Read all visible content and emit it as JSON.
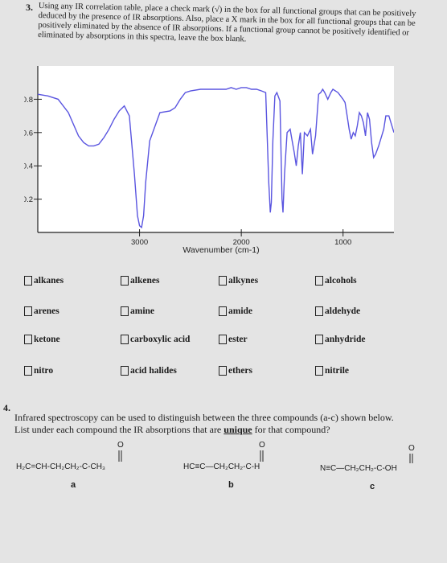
{
  "q3": {
    "number": "3.",
    "text": "Using any IR correlation table, place a check mark (√) in the box for all functional groups that can be positively deduced by the presence of IR absorptions. Also, place a X mark in the box for all functional groups that can be positively eliminated by the absence of IR absorptions. If a functional group cannot be positively identified or eliminated by absorptions in this spectra, leave the box blank."
  },
  "chart_data": {
    "type": "line",
    "title": "",
    "xlabel": "Wavenumber (cm-1)",
    "ylabel": "",
    "x_reversed": true,
    "xlim": [
      4000,
      500
    ],
    "ylim": [
      0,
      1
    ],
    "x_ticks": [
      3000,
      2000,
      1000
    ],
    "y_ticks": [
      0.8,
      0.6,
      0.4,
      0.2
    ],
    "grid": false,
    "series": [
      {
        "color": "#5a55e0",
        "points": [
          [
            4000,
            0.83
          ],
          [
            3900,
            0.82
          ],
          [
            3800,
            0.8
          ],
          [
            3700,
            0.72
          ],
          [
            3600,
            0.58
          ],
          [
            3550,
            0.54
          ],
          [
            3500,
            0.52
          ],
          [
            3450,
            0.52
          ],
          [
            3400,
            0.53
          ],
          [
            3350,
            0.57
          ],
          [
            3300,
            0.62
          ],
          [
            3250,
            0.68
          ],
          [
            3200,
            0.73
          ],
          [
            3150,
            0.76
          ],
          [
            3100,
            0.7
          ],
          [
            3050,
            0.35
          ],
          [
            3020,
            0.1
          ],
          [
            3000,
            0.04
          ],
          [
            2980,
            0.03
          ],
          [
            2960,
            0.1
          ],
          [
            2940,
            0.3
          ],
          [
            2900,
            0.55
          ],
          [
            2800,
            0.72
          ],
          [
            2700,
            0.73
          ],
          [
            2650,
            0.75
          ],
          [
            2600,
            0.8
          ],
          [
            2550,
            0.84
          ],
          [
            2500,
            0.85
          ],
          [
            2400,
            0.86
          ],
          [
            2300,
            0.86
          ],
          [
            2200,
            0.86
          ],
          [
            2150,
            0.86
          ],
          [
            2100,
            0.87
          ],
          [
            2050,
            0.86
          ],
          [
            2000,
            0.87
          ],
          [
            1950,
            0.87
          ],
          [
            1900,
            0.86
          ],
          [
            1850,
            0.86
          ],
          [
            1800,
            0.85
          ],
          [
            1760,
            0.84
          ],
          [
            1730,
            0.3
          ],
          [
            1715,
            0.12
          ],
          [
            1705,
            0.18
          ],
          [
            1690,
            0.55
          ],
          [
            1670,
            0.82
          ],
          [
            1650,
            0.84
          ],
          [
            1620,
            0.79
          ],
          [
            1600,
            0.2
          ],
          [
            1590,
            0.12
          ],
          [
            1575,
            0.35
          ],
          [
            1550,
            0.6
          ],
          [
            1520,
            0.62
          ],
          [
            1500,
            0.55
          ],
          [
            1480,
            0.48
          ],
          [
            1460,
            0.4
          ],
          [
            1440,
            0.52
          ],
          [
            1420,
            0.6
          ],
          [
            1400,
            0.35
          ],
          [
            1380,
            0.6
          ],
          [
            1350,
            0.58
          ],
          [
            1320,
            0.62
          ],
          [
            1300,
            0.47
          ],
          [
            1270,
            0.58
          ],
          [
            1240,
            0.83
          ],
          [
            1220,
            0.84
          ],
          [
            1200,
            0.86
          ],
          [
            1180,
            0.84
          ],
          [
            1150,
            0.8
          ],
          [
            1120,
            0.84
          ],
          [
            1100,
            0.86
          ],
          [
            1050,
            0.84
          ],
          [
            1000,
            0.8
          ],
          [
            980,
            0.78
          ],
          [
            960,
            0.7
          ],
          [
            940,
            0.62
          ],
          [
            920,
            0.56
          ],
          [
            900,
            0.6
          ],
          [
            880,
            0.58
          ],
          [
            860,
            0.64
          ],
          [
            840,
            0.72
          ],
          [
            820,
            0.7
          ],
          [
            800,
            0.66
          ],
          [
            780,
            0.58
          ],
          [
            760,
            0.72
          ],
          [
            740,
            0.68
          ],
          [
            720,
            0.54
          ],
          [
            700,
            0.45
          ],
          [
            680,
            0.47
          ],
          [
            650,
            0.52
          ],
          [
            620,
            0.58
          ],
          [
            600,
            0.62
          ],
          [
            580,
            0.7
          ],
          [
            550,
            0.7
          ],
          [
            500,
            0.6
          ]
        ]
      }
    ]
  },
  "checklist": {
    "rows": [
      [
        "alkanes",
        "alkenes",
        "alkynes",
        "alcohols"
      ],
      [
        "arenes",
        "amine",
        "amide",
        "aldehyde"
      ],
      [
        "ketone",
        "carboxylic acid",
        "ester",
        "anhydride"
      ],
      [
        "nitro",
        "acid halides",
        "ethers",
        "nitrile"
      ]
    ]
  },
  "q4": {
    "number": "4.",
    "line1": "Infrared spectroscopy can be used to distinguish between the three compounds (a-c) shown below.",
    "line2_before": "List under each compound the IR absorptions that are ",
    "line2_emphasis": "unique",
    "line2_after": " for that compound?"
  },
  "compounds": [
    {
      "letter": "a",
      "oxygen": "O",
      "formula": "H₂C=CH-CH₂CH₂-C-CH₃"
    },
    {
      "letter": "b",
      "oxygen": "O",
      "formula": "HC≡C—CH₂CH₂-C-H"
    },
    {
      "letter": "c",
      "oxygen": "O",
      "formula": "N≡C—CH₂CH₂-C-OH"
    }
  ]
}
